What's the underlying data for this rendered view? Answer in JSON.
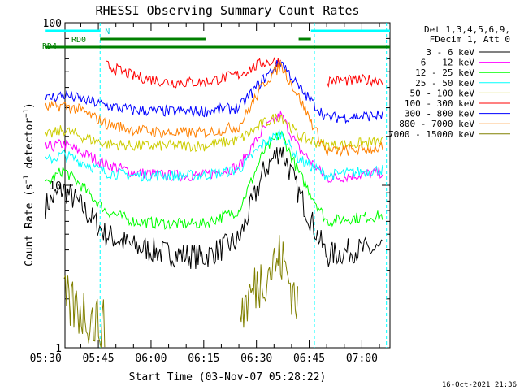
{
  "chart_data": {
    "type": "line",
    "title": "RHESSI Observing Summary Count Rates",
    "xlabel": "Start Time (03-Nov-07 05:28:22)",
    "ylabel": "Count Rate (s⁻¹ detector⁻¹)",
    "ylabel_prefix": "Count Rate (s",
    "ylabel_sup": "−1",
    "ylabel_mid": " detector",
    "ylabel_suffix": ")",
    "y_scale": "log",
    "ylim": [
      1,
      100
    ],
    "x_range_minutes": [
      5.5,
      98
    ],
    "x_tick_minutes": [
      0,
      15,
      30,
      45,
      60,
      75,
      90
    ],
    "x_tick_labels": [
      "05:30",
      "05:45",
      "06:00",
      "06:15",
      "06:30",
      "06:45",
      "07:00"
    ],
    "y_tick_values": [
      1,
      10,
      100
    ],
    "y_tick_labels": [
      "1",
      "10",
      "100"
    ],
    "timestamp": "16-Oct-2021 21:36",
    "legend_header": [
      "Det 1,3,4,5,6,9,",
      "FDecim 1, Att 0"
    ],
    "legend_position": "right",
    "series": [
      {
        "name": "3 - 6 keV",
        "color": "#000000",
        "values": [
          7.5,
          9.5,
          7.5,
          5.0,
          4.2,
          3.8,
          3.6,
          4.6,
          12.0,
          17.0,
          9.0,
          3.7,
          4.0,
          4.0
        ]
      },
      {
        "name": "6 - 12 keV",
        "color": "#ff00ff",
        "values": [
          17.0,
          18.0,
          16.0,
          13.5,
          12.0,
          11.5,
          11.5,
          13.0,
          22.0,
          27.0,
          17.0,
          11.0,
          11.5,
          12.0
        ]
      },
      {
        "name": "12 - 25 keV",
        "color": "#00ff00",
        "values": [
          10.0,
          12.5,
          10.0,
          7.0,
          6.0,
          5.8,
          5.8,
          7.0,
          16.0,
          21.0,
          12.0,
          6.0,
          6.3,
          6.5
        ]
      },
      {
        "name": "25 - 50 keV",
        "color": "#00ffff",
        "values": [
          14.0,
          15.5,
          14.0,
          12.0,
          11.5,
          11.5,
          11.5,
          12.5,
          18.0,
          21.0,
          14.5,
          11.5,
          12.0,
          12.5
        ]
      },
      {
        "name": "50 - 100 keV",
        "color": "#cccc00",
        "values": [
          20.0,
          22.0,
          20.0,
          18.0,
          17.5,
          17.5,
          17.5,
          19.0,
          24.0,
          27.0,
          20.0,
          17.5,
          18.0,
          18.5
        ]
      },
      {
        "name": "100 - 300 keV",
        "color": "#ff0000",
        "values": [
          null,
          null,
          null,
          55.0,
          47.0,
          43.0,
          43.0,
          48.0,
          57.0,
          58.0,
          null,
          44.0,
          44.0,
          45.0
        ]
      },
      {
        "name": "300 - 800 keV",
        "color": "#0000ff",
        "values": [
          34.0,
          36.0,
          34.0,
          31.0,
          29.0,
          28.5,
          28.5,
          30.0,
          45.0,
          58.0,
          40.0,
          26.0,
          26.5,
          27.0
        ]
      },
      {
        "name": "800 - 7000 keV",
        "color": "#ff8000",
        "values": [
          30.0,
          31.0,
          29.0,
          24.0,
          22.0,
          21.0,
          21.0,
          23.0,
          42.0,
          55.0,
          35.0,
          16.0,
          16.5,
          17.0
        ]
      },
      {
        "name": "7000 - 15000 keV",
        "color": "#808000",
        "values": [
          null,
          1.9,
          1.7,
          1.3,
          null,
          null,
          null,
          1.6,
          2.8,
          3.6,
          1.8,
          null,
          null,
          null
        ]
      }
    ],
    "series_x_minutes": [
      0,
      5,
      10,
      17,
      25,
      35,
      45,
      55,
      62,
      67,
      72,
      80,
      88,
      96
    ],
    "state_bars": [
      {
        "label": "N",
        "color": "#00ffff",
        "segments": [
          [
            0,
            15.5
          ],
          [
            75.5,
            98
          ]
        ]
      },
      {
        "label": "RD0",
        "color": "#008000",
        "segments": [
          [
            15.5,
            45.5
          ],
          [
            72,
            75.5
          ]
        ]
      },
      {
        "label": "RD4",
        "color": "#008000",
        "segments": [
          [
            0,
            98
          ]
        ]
      }
    ],
    "vertical_markers_minutes": [
      15.5,
      76.5,
      97
    ],
    "grid": false
  }
}
